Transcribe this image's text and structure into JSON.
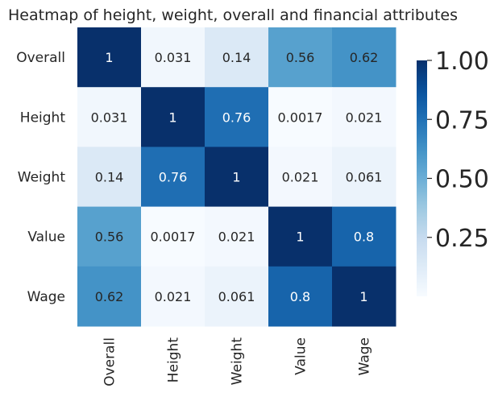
{
  "chart_data": {
    "type": "heatmap",
    "title": "Heatmap of height, weight, overall and financial attributes",
    "rows": [
      "Overall",
      "Height",
      "Weight",
      "Value",
      "Wage"
    ],
    "cols": [
      "Overall",
      "Height",
      "Weight",
      "Value",
      "Wage"
    ],
    "values": [
      [
        1,
        0.031,
        0.14,
        0.56,
        0.62
      ],
      [
        0.031,
        1,
        0.76,
        0.0017,
        0.021
      ],
      [
        0.14,
        0.76,
        1,
        0.021,
        0.061
      ],
      [
        0.56,
        0.0017,
        0.021,
        1,
        0.8
      ],
      [
        0.62,
        0.021,
        0.061,
        0.8,
        1
      ]
    ],
    "labels": [
      [
        "1",
        "0.031",
        "0.14",
        "0.56",
        "0.62"
      ],
      [
        "0.031",
        "1",
        "0.76",
        "0.0017",
        "0.021"
      ],
      [
        "0.14",
        "0.76",
        "1",
        "0.021",
        "0.061"
      ],
      [
        "0.56",
        "0.0017",
        "0.021",
        "1",
        "0.8"
      ],
      [
        "0.62",
        "0.021",
        "0.061",
        "0.8",
        "1"
      ]
    ],
    "colormap": "Blues",
    "colorbar": {
      "vmin": 0,
      "vmax": 1,
      "ticks": [
        0.25,
        0.5,
        0.75,
        1.0
      ],
      "tick_labels": [
        "0.25",
        "0.50",
        "0.75",
        "1.00"
      ]
    }
  }
}
